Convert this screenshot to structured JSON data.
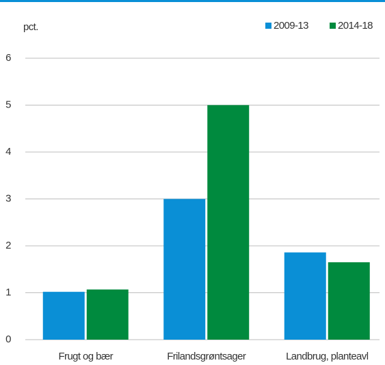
{
  "chart_data": {
    "type": "bar",
    "y_label": "pct.",
    "categories": [
      "Frugt og bær",
      "Frilandsgrøntsager",
      "Landbrug, planteavl"
    ],
    "series": [
      {
        "name": "2009-13",
        "color": "#0a8fd6",
        "values": [
          1.02,
          3.0,
          1.86
        ]
      },
      {
        "name": "2014-18",
        "color": "#008a3e",
        "values": [
          1.07,
          5.0,
          1.65
        ]
      }
    ],
    "ylim": [
      0,
      6
    ],
    "yticks": [
      0,
      1,
      2,
      3,
      4,
      5,
      6
    ],
    "grid": true,
    "legend": "top-right"
  }
}
